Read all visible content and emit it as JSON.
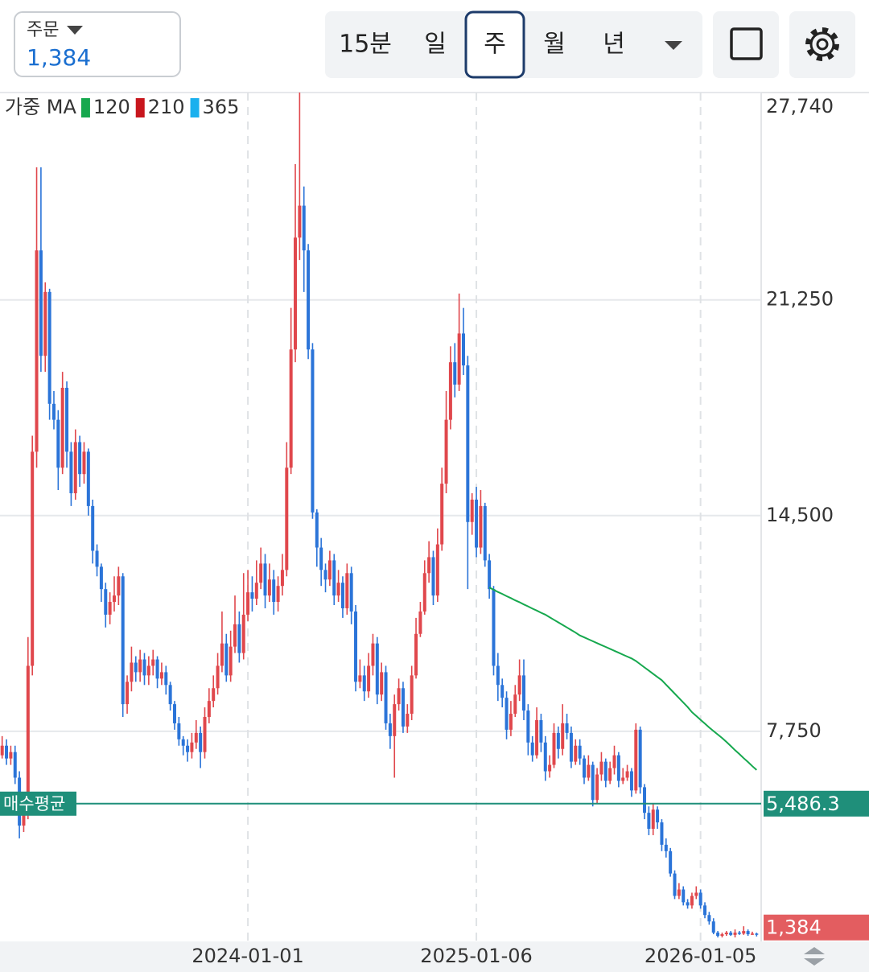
{
  "order": {
    "label": "주문",
    "price": "1,384"
  },
  "tabs": {
    "items": [
      "15분",
      "일",
      "주",
      "월",
      "년"
    ],
    "selected": 2
  },
  "chart_data": {
    "type": "candlestick",
    "categories": [
      null,
      null,
      null,
      null,
      null,
      null,
      null,
      null,
      null,
      null,
      null,
      null,
      null,
      null,
      null,
      null,
      null,
      null,
      null,
      null,
      null,
      null,
      null,
      null,
      null,
      null,
      null,
      null,
      null,
      null,
      null,
      null,
      null,
      null,
      null,
      null,
      null,
      null,
      null,
      null,
      null,
      null,
      null,
      null,
      null,
      null,
      null,
      null,
      null,
      null,
      null,
      null,
      null,
      null,
      null,
      null,
      null,
      "2024-01-01",
      null,
      null,
      null,
      null,
      null,
      null,
      null,
      null,
      null,
      null,
      null,
      null,
      null,
      null,
      null,
      null,
      null,
      null,
      null,
      null,
      null,
      null,
      null,
      null,
      null,
      null,
      null,
      null,
      null,
      null,
      null,
      null,
      null,
      null,
      null,
      null,
      null,
      null,
      null,
      null,
      null,
      null,
      null,
      null,
      null,
      null,
      null,
      null,
      null,
      null,
      null,
      null,
      "2025-01-06",
      null,
      null,
      null,
      null,
      null,
      null,
      null,
      null,
      null,
      null,
      null,
      null,
      null,
      null,
      null,
      null,
      null,
      null,
      null,
      null,
      null,
      null,
      null,
      null,
      null,
      null,
      null,
      null,
      null,
      null,
      null,
      null,
      null,
      null,
      null,
      null,
      null,
      null,
      null,
      null,
      null,
      null,
      null,
      null,
      null,
      null,
      null,
      null,
      null,
      null,
      null,
      "2026-01-05",
      null,
      null,
      null,
      null,
      null,
      null,
      null,
      null,
      null,
      null,
      null,
      null,
      null
    ],
    "open": [
      7000,
      7300,
      6900,
      7100,
      6300,
      4800,
      5200,
      9800,
      16500,
      22800,
      19500,
      21500,
      18000,
      17500,
      16000,
      18500,
      16500,
      15200,
      16800,
      15800,
      16500,
      14800,
      13400,
      12900,
      12200,
      11400,
      11800,
      12000,
      12600,
      8600,
      9300,
      9900,
      9600,
      10000,
      9500,
      9800,
      10000,
      9400,
      9600,
      9200,
      8600,
      8000,
      7500,
      7300,
      7100,
      7400,
      7700,
      7100,
      8200,
      8700,
      9100,
      9800,
      10500,
      9500,
      10400,
      11100,
      10200,
      11400,
      12100,
      11900,
      12400,
      13000,
      12000,
      12500,
      11800,
      12300,
      12800,
      16000,
      19700,
      23200,
      24200,
      22800,
      19700,
      14600,
      13500,
      12800,
      12500,
      13100,
      12000,
      12400,
      11600,
      12700,
      11500,
      9300,
      9500,
      9000,
      9800,
      10500,
      8900,
      9600,
      8000,
      7600,
      8600,
      9100,
      7900,
      8300,
      9500,
      10800,
      11500,
      12700,
      13200,
      12000,
      13600,
      15500,
      17500,
      19300,
      18600,
      20200,
      19200,
      14300,
      15000,
      13500,
      14800,
      13100,
      12200,
      9800,
      9200,
      8800,
      7800,
      8300,
      8900,
      9500,
      8400,
      7400,
      7000,
      8100,
      7400,
      6500,
      6700,
      7700,
      7200,
      8000,
      7700,
      6800,
      7300,
      6900,
      6300,
      6700,
      5600,
      6400,
      6800,
      6200,
      6600,
      7000,
      6200,
      6300,
      6500,
      5900,
      7800,
      6000,
      5200,
      4700,
      5300,
      4900,
      4200,
      4000,
      3300,
      2600,
      2800,
      2400,
      2300,
      2600,
      2700,
      2300,
      2000,
      1800,
      1450,
      1350,
      1400,
      1450,
      1380,
      1450,
      1420,
      1500,
      1400,
      1420
    ],
    "high": [
      7600,
      7500,
      7300,
      7300,
      6500,
      5500,
      10700,
      17000,
      25400,
      25400,
      21800,
      21600,
      18400,
      17800,
      19000,
      18700,
      16800,
      17200,
      17000,
      16800,
      16600,
      15000,
      13600,
      13000,
      12400,
      12100,
      12600,
      12900,
      12700,
      9500,
      10400,
      10100,
      10300,
      10200,
      10100,
      10300,
      10100,
      9900,
      9800,
      9300,
      8700,
      8200,
      7600,
      7500,
      7700,
      8100,
      7900,
      8500,
      9100,
      9500,
      10200,
      11500,
      10800,
      10900,
      12000,
      11500,
      12700,
      12800,
      12600,
      13100,
      13500,
      13300,
      13000,
      12800,
      12600,
      13300,
      16800,
      21000,
      25500,
      27740,
      24800,
      23000,
      19900,
      14700,
      13800,
      13000,
      13400,
      13300,
      12800,
      12600,
      13000,
      12900,
      11700,
      10000,
      9800,
      10200,
      10800,
      10700,
      9900,
      9800,
      8300,
      8900,
      9400,
      9300,
      8600,
      9800,
      11300,
      11800,
      13100,
      13700,
      13400,
      14100,
      16000,
      18400,
      19800,
      19900,
      21450,
      21000,
      19500,
      15200,
      15400,
      15300,
      14900,
      13300,
      12300,
      10200,
      9400,
      9000,
      8700,
      9200,
      10000,
      10000,
      8600,
      7600,
      8500,
      8300,
      7600,
      7000,
      8000,
      7900,
      8600,
      8300,
      7900,
      7500,
      7500,
      7000,
      7000,
      6800,
      6600,
      7100,
      6900,
      6800,
      7300,
      7100,
      6600,
      6700,
      6600,
      8000,
      7900,
      6100,
      5400,
      5500,
      5400,
      5000,
      4400,
      4100,
      3400,
      3000,
      2900,
      2500,
      2700,
      2900,
      2800,
      2400,
      2100,
      1900,
      1500,
      1450,
      1500,
      1500,
      1550,
      1500,
      1650,
      1550,
      1480,
      1450
    ],
    "low": [
      6900,
      6700,
      6700,
      6100,
      4400,
      4600,
      5000,
      9500,
      16000,
      19000,
      19000,
      17500,
      17200,
      15300,
      15800,
      16000,
      14800,
      15000,
      15400,
      15500,
      14500,
      13000,
      12600,
      11800,
      11000,
      11100,
      11500,
      11700,
      8200,
      8300,
      9000,
      9300,
      9300,
      9200,
      9200,
      9500,
      9100,
      9200,
      8900,
      8400,
      7800,
      7300,
      7000,
      6800,
      6900,
      7200,
      6600,
      6900,
      8000,
      8500,
      8900,
      9600,
      9300,
      9300,
      10200,
      9900,
      10000,
      11200,
      11500,
      11700,
      12200,
      11600,
      11800,
      11400,
      11500,
      12000,
      12600,
      15800,
      19300,
      22500,
      21500,
      19400,
      14400,
      12900,
      12300,
      12100,
      12300,
      11700,
      11800,
      11300,
      11400,
      11100,
      9000,
      9100,
      8700,
      8800,
      9500,
      8600,
      8700,
      7800,
      7200,
      6300,
      8400,
      7700,
      7700,
      8100,
      9400,
      10700,
      11400,
      12400,
      11700,
      11800,
      13400,
      15200,
      17200,
      18200,
      18400,
      18900,
      12200,
      13900,
      13200,
      13300,
      12900,
      11900,
      9500,
      8700,
      8500,
      7500,
      7600,
      8200,
      8700,
      8100,
      7000,
      6800,
      6900,
      7100,
      6200,
      6300,
      6600,
      6900,
      7000,
      7500,
      6600,
      6700,
      6700,
      6100,
      6200,
      5400,
      5500,
      6200,
      6000,
      6100,
      6400,
      6000,
      6100,
      6200,
      5700,
      5800,
      5800,
      5000,
      4500,
      4500,
      4700,
      4000,
      3800,
      3200,
      2500,
      2500,
      2300,
      2200,
      2200,
      2500,
      2200,
      1900,
      1700,
      1400,
      1300,
      1300,
      1350,
      1350,
      1300,
      1380,
      1380,
      1350,
      1380,
      1330
    ],
    "close": [
      7300,
      6900,
      7100,
      6300,
      4800,
      5200,
      9800,
      16500,
      22800,
      19500,
      21500,
      18000,
      17500,
      16000,
      18500,
      16500,
      15200,
      16800,
      15800,
      16500,
      14800,
      13400,
      12900,
      12200,
      11400,
      11800,
      12000,
      12600,
      8600,
      9300,
      9900,
      9600,
      10000,
      9500,
      9800,
      10000,
      9400,
      9600,
      9200,
      8600,
      8000,
      7500,
      7300,
      7100,
      7400,
      7700,
      7100,
      8200,
      8700,
      9100,
      9800,
      10500,
      9500,
      10400,
      11100,
      10200,
      11400,
      12100,
      11900,
      12400,
      13000,
      12000,
      12500,
      11800,
      12300,
      12800,
      16000,
      19700,
      23200,
      24200,
      22800,
      19700,
      14600,
      13500,
      12800,
      12500,
      13100,
      12000,
      12400,
      11600,
      12700,
      11500,
      9300,
      9500,
      9000,
      9800,
      10500,
      8900,
      9600,
      8000,
      7600,
      8600,
      9100,
      7900,
      8300,
      9500,
      10800,
      11500,
      12700,
      13200,
      12000,
      13600,
      15500,
      17500,
      19300,
      18600,
      20200,
      19200,
      14300,
      15000,
      13500,
      14800,
      13100,
      12200,
      9800,
      9200,
      8800,
      7800,
      8300,
      8900,
      9500,
      8400,
      7400,
      7000,
      8100,
      7400,
      6500,
      6700,
      7700,
      7200,
      8000,
      7700,
      6800,
      7300,
      6900,
      6300,
      6700,
      5600,
      6400,
      6800,
      6200,
      6600,
      7000,
      6200,
      6300,
      6500,
      5900,
      7800,
      6000,
      5200,
      4700,
      5300,
      4900,
      4200,
      4000,
      3300,
      2600,
      2800,
      2400,
      2300,
      2600,
      2700,
      2300,
      2000,
      1800,
      1450,
      1350,
      1400,
      1450,
      1380,
      1450,
      1420,
      1500,
      1400,
      1420,
      1384
    ],
    "up_color": "#e0474c",
    "down_color": "#2b74d8",
    "ylim": [
      1175,
      27740
    ],
    "yticks": [
      {
        "value": 7750,
        "label": "7,750"
      },
      {
        "value": 14500,
        "label": "14,500"
      },
      {
        "value": 21250,
        "label": "21,250"
      },
      {
        "value": 27740,
        "label": "27,740"
      }
    ],
    "grid": true,
    "ma_legend": {
      "label": "가중 MA",
      "items": [
        {
          "name": "120",
          "color": "#16a84e",
          "values": [
            null,
            null,
            null,
            null,
            null,
            null,
            null,
            null,
            null,
            null,
            null,
            null,
            null,
            null,
            null,
            null,
            null,
            null,
            null,
            null,
            null,
            null,
            null,
            null,
            null,
            null,
            null,
            null,
            null,
            null,
            null,
            null,
            null,
            null,
            null,
            null,
            null,
            null,
            null,
            null,
            null,
            null,
            null,
            null,
            null,
            null,
            null,
            null,
            null,
            null,
            null,
            null,
            null,
            null,
            null,
            null,
            null,
            null,
            null,
            null,
            null,
            null,
            null,
            null,
            null,
            null,
            null,
            null,
            null,
            null,
            null,
            null,
            null,
            null,
            null,
            null,
            null,
            null,
            null,
            null,
            null,
            null,
            null,
            null,
            null,
            null,
            null,
            null,
            null,
            null,
            null,
            null,
            null,
            null,
            null,
            null,
            null,
            null,
            null,
            null,
            null,
            null,
            null,
            null,
            null,
            null,
            null,
            null,
            null,
            null,
            null,
            null,
            null,
            12250,
            12180,
            12110,
            12050,
            11980,
            11920,
            11850,
            11790,
            11720,
            11660,
            11590,
            11530,
            11460,
            11400,
            11320,
            11240,
            11160,
            11080,
            11000,
            10920,
            10840,
            10750,
            10690,
            10630,
            10570,
            10510,
            10450,
            10390,
            10330,
            10270,
            10210,
            10150,
            10090,
            10030,
            9950,
            9850,
            9750,
            9650,
            9550,
            9450,
            9350,
            9210,
            9070,
            8930,
            8790,
            8650,
            8510,
            8350,
            8230,
            8110,
            7990,
            7870,
            7760,
            7650,
            7540,
            7420,
            7290,
            7160,
            7040,
            6910,
            6790,
            6660,
            6540
          ]
        },
        {
          "name": "210",
          "color": "#c8161d"
        },
        {
          "name": "365",
          "color": "#1ab0ee"
        }
      ]
    },
    "avg_price": {
      "label": "매수평균",
      "value": 5486.3,
      "value_label": "5,486.3",
      "color": "#1f8f7a"
    },
    "last_price": {
      "value": 1384,
      "value_label": "1,384",
      "color": "#e35d60"
    }
  }
}
